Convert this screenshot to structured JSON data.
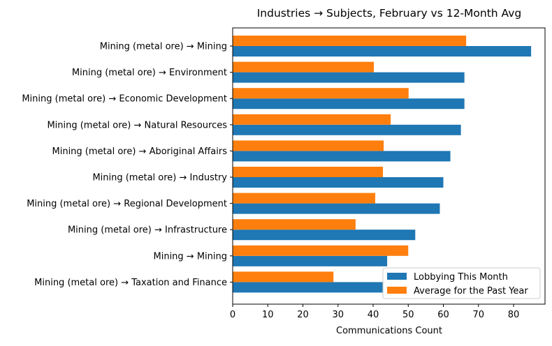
{
  "chart_data": {
    "type": "bar",
    "orientation": "horizontal",
    "title": "Industries → Subjects, February vs 12-Month Avg",
    "xlabel": "Communications Count",
    "ylabel": "",
    "xlim": [
      0,
      89
    ],
    "xticks": [
      0,
      10,
      20,
      30,
      40,
      50,
      60,
      70,
      80
    ],
    "grid": false,
    "legend_position": "bottom-right",
    "categories": [
      "Mining (metal ore) → Mining",
      "Mining (metal ore) → Environment",
      "Mining (metal ore) → Economic Development",
      "Mining (metal ore) → Natural Resources",
      "Mining (metal ore) → Aboriginal Affairs",
      "Mining (metal ore) → Industry",
      "Mining (metal ore) → Regional Development",
      "Mining (metal ore) → Infrastructure",
      "Mining → Mining",
      "Mining (metal ore) → Taxation and Finance"
    ],
    "series": [
      {
        "name": "Lobbying This Month",
        "color": "#1f77b4",
        "values": [
          85,
          66,
          66,
          65,
          62,
          60,
          59,
          52,
          44,
          43
        ]
      },
      {
        "name": "Average for the Past Year",
        "color": "#ff7f0e",
        "values": [
          66.5,
          40.2,
          50.1,
          45,
          43,
          42.8,
          40.6,
          35,
          50,
          28.7
        ]
      }
    ]
  }
}
